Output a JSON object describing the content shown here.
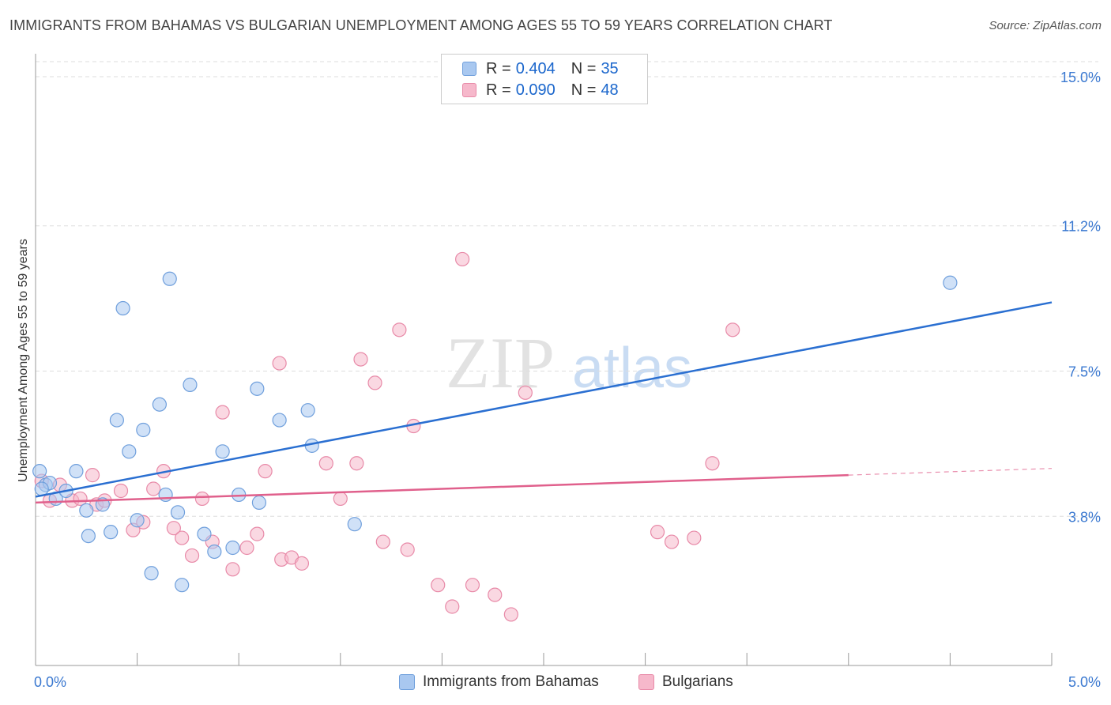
{
  "title": "IMMIGRANTS FROM BAHAMAS VS BULGARIAN UNEMPLOYMENT AMONG AGES 55 TO 59 YEARS CORRELATION CHART",
  "source": "Source: ZipAtlas.com",
  "watermark": {
    "zip": "ZIP",
    "atlas": "atlas"
  },
  "legend": {
    "rows": [
      {
        "r_label": "R = ",
        "r_value": "0.404",
        "n_label": "N = ",
        "n_value": "35",
        "color": "#a9c8f0"
      },
      {
        "r_label": "R = ",
        "r_value": "0.090",
        "n_label": "N = ",
        "n_value": "48",
        "color": "#f6b8cb"
      }
    ]
  },
  "colors": {
    "blue_fill": "#a9c8f0",
    "blue_stroke": "#6f9fdc",
    "blue_line": "#2a6fd1",
    "pink_fill": "#f6b8cb",
    "pink_stroke": "#e88aa8",
    "pink_line": "#e0608c",
    "tick_text": "#3a78d0",
    "grid": "#dddddd"
  },
  "chart_data": {
    "type": "scatter",
    "xlabel": "",
    "ylabel": "Unemployment Among Ages 55 to 59 years",
    "xlim": [
      0,
      5.0
    ],
    "ylim": [
      0,
      15.0
    ],
    "x_tick_labels": [
      "0.0%",
      "5.0%"
    ],
    "y_ticks": [
      3.8,
      7.5,
      11.2,
      15.0
    ],
    "y_tick_labels": [
      "3.8%",
      "7.5%",
      "11.2%",
      "15.0%"
    ],
    "grid": true,
    "legend_position": "top-center",
    "series": [
      {
        "name": "Immigrants from Bahamas",
        "r": 0.404,
        "n": 35,
        "points": [
          [
            0.02,
            4.95
          ],
          [
            0.05,
            4.6
          ],
          [
            0.1,
            4.25
          ],
          [
            0.15,
            4.45
          ],
          [
            0.2,
            4.95
          ],
          [
            0.25,
            3.95
          ],
          [
            0.33,
            4.1
          ],
          [
            0.26,
            3.3
          ],
          [
            0.37,
            3.4
          ],
          [
            0.43,
            9.1
          ],
          [
            0.4,
            6.25
          ],
          [
            0.46,
            5.45
          ],
          [
            0.53,
            6.0
          ],
          [
            0.5,
            3.7
          ],
          [
            0.57,
            2.35
          ],
          [
            0.61,
            6.65
          ],
          [
            0.64,
            4.35
          ],
          [
            0.66,
            9.85
          ],
          [
            0.7,
            3.9
          ],
          [
            0.72,
            2.05
          ],
          [
            0.76,
            7.15
          ],
          [
            0.83,
            3.35
          ],
          [
            0.88,
            2.9
          ],
          [
            0.92,
            5.45
          ],
          [
            0.97,
            3.0
          ],
          [
            1.0,
            4.35
          ],
          [
            1.09,
            7.05
          ],
          [
            1.1,
            4.15
          ],
          [
            1.2,
            6.25
          ],
          [
            1.34,
            6.5
          ],
          [
            1.36,
            5.6
          ],
          [
            1.57,
            3.6
          ],
          [
            4.5,
            9.75
          ],
          [
            0.07,
            4.65
          ],
          [
            0.03,
            4.5
          ]
        ],
        "trendline": {
          "x": [
            0.0,
            5.0
          ],
          "y": [
            4.3,
            9.25
          ]
        }
      },
      {
        "name": "Bulgarians",
        "r": 0.09,
        "n": 48,
        "points": [
          [
            0.03,
            4.7
          ],
          [
            0.07,
            4.2
          ],
          [
            0.12,
            4.6
          ],
          [
            0.18,
            4.2
          ],
          [
            0.22,
            4.25
          ],
          [
            0.28,
            4.85
          ],
          [
            0.3,
            4.1
          ],
          [
            0.34,
            4.2
          ],
          [
            0.42,
            4.45
          ],
          [
            0.48,
            3.45
          ],
          [
            0.53,
            3.65
          ],
          [
            0.58,
            4.5
          ],
          [
            0.63,
            4.95
          ],
          [
            0.68,
            3.5
          ],
          [
            0.72,
            3.25
          ],
          [
            0.77,
            2.8
          ],
          [
            0.82,
            4.25
          ],
          [
            0.87,
            3.15
          ],
          [
            0.92,
            6.45
          ],
          [
            0.97,
            2.45
          ],
          [
            1.04,
            3.0
          ],
          [
            1.09,
            3.35
          ],
          [
            1.13,
            4.95
          ],
          [
            1.2,
            7.7
          ],
          [
            1.21,
            2.7
          ],
          [
            1.26,
            2.75
          ],
          [
            1.31,
            2.6
          ],
          [
            1.43,
            5.15
          ],
          [
            1.5,
            4.25
          ],
          [
            1.6,
            7.8
          ],
          [
            1.58,
            5.15
          ],
          [
            1.67,
            7.2
          ],
          [
            1.71,
            3.15
          ],
          [
            1.79,
            8.55
          ],
          [
            1.83,
            2.95
          ],
          [
            1.86,
            6.1
          ],
          [
            1.98,
            2.05
          ],
          [
            2.05,
            1.5
          ],
          [
            2.1,
            10.35
          ],
          [
            2.15,
            2.05
          ],
          [
            2.26,
            1.8
          ],
          [
            2.34,
            1.3
          ],
          [
            2.41,
            6.95
          ],
          [
            3.06,
            3.4
          ],
          [
            3.13,
            3.15
          ],
          [
            3.24,
            3.25
          ],
          [
            3.33,
            5.15
          ],
          [
            3.43,
            8.55
          ]
        ],
        "trendline": {
          "x": [
            0.0,
            4.0
          ],
          "y": [
            4.15,
            4.85
          ]
        },
        "trendline_dashed": {
          "x": [
            4.0,
            5.0
          ],
          "y": [
            4.85,
            5.02
          ]
        }
      }
    ]
  }
}
